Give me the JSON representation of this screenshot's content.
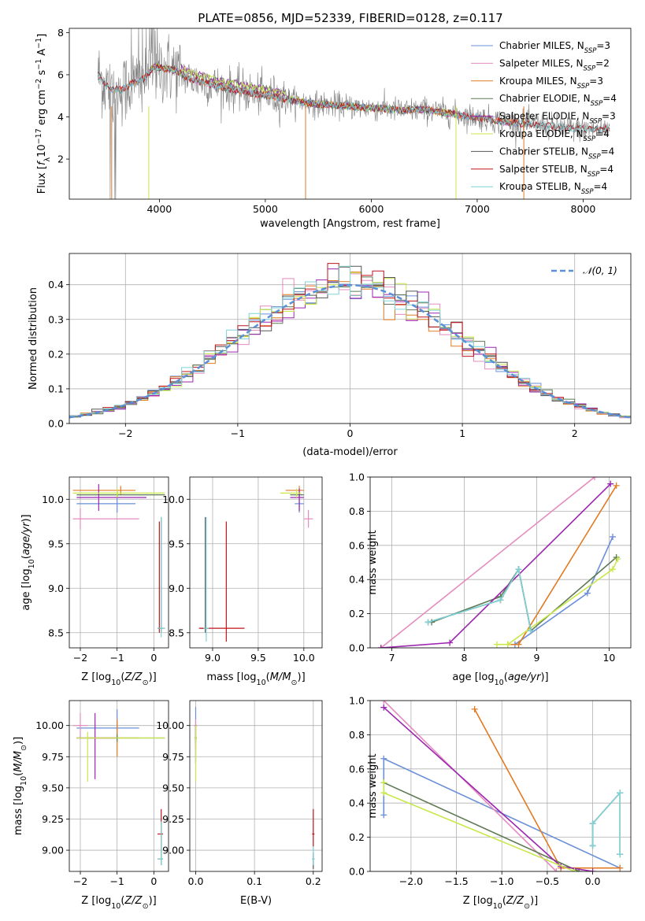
{
  "figure_title": "PLATE=0856, MJD=52339, FIBERID=0128, z=0.117",
  "colors": {
    "Chabrier MILES": "#6a8fd8",
    "Salpeter MILES": "#e58bbf",
    "Kroupa MILES": "#e07b22",
    "Chabrier ELODIE": "#5f7a55",
    "Salpeter ELODIE": "#9b26af",
    "Kroupa ELODIE": "#c8e84a",
    "Chabrier STELIB": "#555555",
    "Salpeter STELIB": "#c0151c",
    "Kroupa STELIB": "#7fd3d6",
    "data": "#808080"
  },
  "chart_data": [
    {
      "id": "spectrum",
      "type": "line",
      "title": "PLATE=0856, MJD=52339, FIBERID=0128, z=0.117",
      "xlabel": "wavelength [Angstrom, rest frame]",
      "ylabel": "Flux [fλ10^-17 erg cm^-2 s^-1 A^-1]",
      "xlim": [
        3150,
        8450
      ],
      "ylim": [
        0.1,
        8.2
      ],
      "xticks": [
        4000,
        5000,
        6000,
        7000,
        8000
      ],
      "yticks": [
        2,
        4,
        6,
        8
      ],
      "model_continuum": {
        "x": [
          3420,
          3480,
          3550,
          3650,
          3750,
          3850,
          3950,
          4050,
          4150,
          4300,
          4500,
          4700,
          4900,
          5100,
          5300,
          5500,
          5700,
          5900,
          6100,
          6300,
          6500,
          6700,
          6900,
          7100,
          7300,
          7500,
          7700,
          7900,
          8100,
          8250
        ],
        "y": [
          6.0,
          5.6,
          5.3,
          5.3,
          5.6,
          5.8,
          6.4,
          6.3,
          6.2,
          5.8,
          5.5,
          5.3,
          5.1,
          4.95,
          4.75,
          4.6,
          4.55,
          4.45,
          4.4,
          4.3,
          4.35,
          4.2,
          4.05,
          3.9,
          3.75,
          3.65,
          3.55,
          3.45,
          3.4,
          3.45
        ]
      },
      "legend": [
        {
          "label": "Chabrier MILES, N",
          "sub": "SSP",
          "tail": "=3",
          "color_key": "Chabrier MILES"
        },
        {
          "label": "Salpeter MILES, N",
          "sub": "SSP",
          "tail": "=2",
          "color_key": "Salpeter MILES"
        },
        {
          "label": "Kroupa MILES, N",
          "sub": "SSP",
          "tail": "=3",
          "color_key": "Kroupa MILES"
        },
        {
          "label": "Chabrier ELODIE, N",
          "sub": "SSP",
          "tail": "=4",
          "color_key": "Chabrier ELODIE"
        },
        {
          "label": "Salpeter ELODIE, N",
          "sub": "SSP",
          "tail": "=3",
          "color_key": "Salpeter ELODIE"
        },
        {
          "label": "Kroupa ELODIE, N",
          "sub": "SSP",
          "tail": "=4",
          "color_key": "Kroupa ELODIE"
        },
        {
          "label": "Chabrier STELIB, N",
          "sub": "SSP",
          "tail": "=4",
          "color_key": "Chabrier STELIB"
        },
        {
          "label": "Salpeter STELIB, N",
          "sub": "SSP",
          "tail": "=4",
          "color_key": "Salpeter STELIB"
        },
        {
          "label": "Kroupa STELIB, N",
          "sub": "SSP",
          "tail": "=4",
          "color_key": "Kroupa STELIB"
        }
      ]
    },
    {
      "id": "residuals",
      "type": "line",
      "xlabel": "(data-model)/error",
      "ylabel": "Normed distribution",
      "xlim": [
        -2.5,
        2.5
      ],
      "ylim": [
        0,
        0.49
      ],
      "xticks": [
        -2,
        -1,
        0,
        1,
        2
      ],
      "yticks": [
        0.0,
        0.1,
        0.2,
        0.3,
        0.4
      ],
      "bin_width": 0.1,
      "legend": "𝒩(0, 1)",
      "normal_curve": {
        "mu": 0,
        "sigma": 1,
        "color": "#5b8fd6"
      }
    },
    {
      "id": "age_vs_Z",
      "type": "scatter",
      "xlabel": "Z [log10(Z/Z☉)]",
      "ylabel": "age  [log10(age/yr)]",
      "xlim": [
        -2.3,
        0.4
      ],
      "ylim": [
        8.33,
        10.25
      ],
      "xticks": [
        -2,
        -1,
        0
      ],
      "yticks": [
        8.5,
        9.0,
        9.5,
        10.0
      ],
      "points": [
        {
          "key": "Chabrier MILES",
          "x": -1.0,
          "y": 9.95,
          "xerr": [
            1.1,
            0.5
          ],
          "yerr": [
            0.1,
            0.15
          ]
        },
        {
          "key": "Salpeter MILES",
          "x": -2.0,
          "y": 9.78,
          "xerr": [
            0.2,
            1.6
          ],
          "yerr": [
            0.12,
            0.12
          ]
        },
        {
          "key": "Kroupa MILES",
          "x": -0.9,
          "y": 10.1,
          "xerr": [
            1.3,
            0.4
          ],
          "yerr": [
            0.05,
            0.05
          ]
        },
        {
          "key": "Chabrier ELODIE",
          "x": -1.0,
          "y": 10.05,
          "xerr": [
            1.1,
            1.3
          ],
          "yerr": [
            0.03,
            0.03
          ]
        },
        {
          "key": "Salpeter ELODIE",
          "x": -1.5,
          "y": 10.02,
          "xerr": [
            0.6,
            1.3
          ],
          "yerr": [
            0.15,
            0.15
          ]
        },
        {
          "key": "Kroupa ELODIE",
          "x": -1.0,
          "y": 10.07,
          "xerr": [
            1.2,
            1.3
          ],
          "yerr": [
            0.05,
            0.05
          ]
        },
        {
          "key": "Chabrier STELIB",
          "x": 0.2,
          "y": 8.55,
          "xerr": [
            0.1,
            0.1
          ],
          "yerr": [
            0.05,
            1.25
          ]
        },
        {
          "key": "Salpeter STELIB",
          "x": 0.15,
          "y": 8.55,
          "xerr": [
            0.05,
            0.05
          ],
          "yerr": [
            0.05,
            1.2
          ]
        },
        {
          "key": "Kroupa STELIB",
          "x": 0.2,
          "y": 8.55,
          "xerr": [
            0.1,
            0.1
          ],
          "yerr": [
            0.1,
            1.25
          ]
        }
      ]
    },
    {
      "id": "age_vs_mass",
      "type": "scatter",
      "xlabel": "mass [log10(M/M☉)]",
      "ylabel": "",
      "xlim": [
        8.75,
        10.2
      ],
      "ylim": [
        8.33,
        10.25
      ],
      "xticks": [
        9.0,
        9.5,
        10.0
      ],
      "yticks": [
        8.5,
        9.0,
        9.5,
        10.0
      ],
      "points": [
        {
          "key": "Chabrier MILES",
          "x": 9.95,
          "y": 9.95,
          "xerr": [
            0.05,
            0.05
          ],
          "yerr": [
            0.1,
            0.15
          ]
        },
        {
          "key": "Salpeter MILES",
          "x": 10.05,
          "y": 9.78,
          "xerr": [
            0.05,
            0.05
          ],
          "yerr": [
            0.1,
            0.1
          ]
        },
        {
          "key": "Kroupa MILES",
          "x": 9.95,
          "y": 10.1,
          "xerr": [
            0.15,
            0.05
          ],
          "yerr": [
            0.05,
            0.05
          ]
        },
        {
          "key": "Chabrier ELODIE",
          "x": 9.95,
          "y": 10.05,
          "xerr": [
            0.1,
            0.05
          ],
          "yerr": [
            0.03,
            0.03
          ]
        },
        {
          "key": "Salpeter ELODIE",
          "x": 9.95,
          "y": 10.02,
          "xerr": [
            0.1,
            0.05
          ],
          "yerr": [
            0.15,
            0.1
          ]
        },
        {
          "key": "Kroupa ELODIE",
          "x": 9.92,
          "y": 10.07,
          "xerr": [
            0.18,
            0.05
          ],
          "yerr": [
            0.05,
            0.05
          ]
        },
        {
          "key": "Chabrier STELIB",
          "x": 8.92,
          "y": 8.55,
          "xerr": [
            0.05,
            0.05
          ],
          "yerr": [
            0.05,
            1.25
          ]
        },
        {
          "key": "Salpeter STELIB",
          "x": 9.15,
          "y": 8.55,
          "xerr": [
            0.3,
            0.2
          ],
          "yerr": [
            0.15,
            1.2
          ]
        },
        {
          "key": "Kroupa STELIB",
          "x": 8.93,
          "y": 8.55,
          "xerr": [
            0.03,
            0.03
          ],
          "yerr": [
            0.15,
            1.25
          ]
        }
      ]
    },
    {
      "id": "mass_weight_vs_age",
      "type": "line",
      "xlabel": "age  [log10(age/yr)]",
      "ylabel": "mass weight",
      "xlim": [
        6.7,
        10.3
      ],
      "ylim": [
        0,
        1.0
      ],
      "xticks": [
        7,
        8,
        9,
        10
      ],
      "yticks": [
        0.0,
        0.2,
        0.4,
        0.6,
        0.8,
        1.0
      ],
      "series": [
        {
          "key": "Chabrier MILES",
          "x": [
            8.7,
            9.7,
            10.05
          ],
          "y": [
            0.02,
            0.32,
            0.65
          ]
        },
        {
          "key": "Salpeter MILES",
          "x": [
            6.85,
            9.8
          ],
          "y": [
            0.0,
            1.0
          ]
        },
        {
          "key": "Kroupa MILES",
          "x": [
            8.6,
            8.75,
            10.1
          ],
          "y": [
            0.02,
            0.02,
            0.95
          ]
        },
        {
          "key": "Chabrier ELODIE",
          "x": [
            7.55,
            8.5,
            8.75,
            8.92,
            10.1
          ],
          "y": [
            0.15,
            0.3,
            0.46,
            0.1,
            0.53
          ]
        },
        {
          "key": "Salpeter ELODIE",
          "x": [
            6.85,
            7.8,
            10.02
          ],
          "y": [
            0.0,
            0.03,
            0.96
          ]
        },
        {
          "key": "Kroupa ELODIE",
          "x": [
            8.45,
            8.6,
            10.05,
            10.12
          ],
          "y": [
            0.02,
            0.02,
            0.46,
            0.52
          ]
        },
        {
          "key": "Chabrier STELIB",
          "x": [
            7.5,
            8.5,
            8.75,
            8.92
          ],
          "y": [
            0.15,
            0.28,
            0.46,
            0.1
          ]
        },
        {
          "key": "Kroupa STELIB",
          "x": [
            7.5,
            8.5,
            8.75,
            8.92
          ],
          "y": [
            0.15,
            0.28,
            0.46,
            0.1
          ]
        }
      ]
    },
    {
      "id": "mass_vs_Z",
      "type": "scatter",
      "xlabel": "Z [log10(Z/Z☉)]",
      "ylabel": "mass [log10(M/M☉)]",
      "xlim": [
        -2.3,
        0.4
      ],
      "ylim": [
        8.83,
        10.2
      ],
      "xticks": [
        -2,
        -1,
        0
      ],
      "yticks": [
        9.0,
        9.25,
        9.5,
        9.75,
        10.0
      ],
      "points": [
        {
          "key": "Chabrier MILES",
          "x": -1.0,
          "y": 9.98,
          "xerr": [
            1.1,
            0.6
          ],
          "yerr": [
            0.05,
            0.15
          ]
        },
        {
          "key": "Salpeter MILES",
          "x": -2.0,
          "y": 10.0,
          "xerr": [
            0.2,
            0.2
          ],
          "yerr": [
            0.1,
            0.1
          ]
        },
        {
          "key": "Kroupa MILES",
          "x": -1.0,
          "y": 9.9,
          "xerr": [
            0.8,
            0.6
          ],
          "yerr": [
            0.15,
            0.15
          ]
        },
        {
          "key": "Chabrier ELODIE",
          "x": -1.0,
          "y": 9.9,
          "xerr": [
            1.1,
            1.3
          ],
          "yerr": [
            0.03,
            0.03
          ]
        },
        {
          "key": "Salpeter ELODIE",
          "x": -1.6,
          "y": 9.9,
          "xerr": [
            0.5,
            0.6
          ],
          "yerr": [
            0.33,
            0.2
          ]
        },
        {
          "key": "Kroupa ELODIE",
          "x": -1.8,
          "y": 9.9,
          "xerr": [
            0.3,
            2.1
          ],
          "yerr": [
            0.35,
            0.05
          ]
        },
        {
          "key": "Chabrier STELIB",
          "x": 0.2,
          "y": 8.93,
          "xerr": [
            0.1,
            0.05
          ],
          "yerr": [
            0.05,
            0.05
          ]
        },
        {
          "key": "Salpeter STELIB",
          "x": 0.2,
          "y": 9.13,
          "xerr": [
            0.1,
            0.05
          ],
          "yerr": [
            0.15,
            0.2
          ]
        },
        {
          "key": "Kroupa STELIB",
          "x": 0.2,
          "y": 8.93,
          "xerr": [
            0.1,
            0.05
          ],
          "yerr": [
            0.05,
            0.3
          ]
        }
      ]
    },
    {
      "id": "mass_vs_ebv",
      "type": "scatter",
      "xlabel": "E(B-V)",
      "ylabel": "",
      "xlim": [
        -0.01,
        0.215
      ],
      "ylim": [
        8.83,
        10.2
      ],
      "xticks": [
        0.0,
        0.1,
        0.2
      ],
      "yticks": [
        9.0,
        9.25,
        9.5,
        9.75,
        10.0
      ],
      "points": [
        {
          "key": "Chabrier MILES",
          "x": 0.0,
          "y": 10.0,
          "xerr": [
            0.002,
            0.002
          ],
          "yerr": [
            0.05,
            0.15
          ]
        },
        {
          "key": "Salpeter MILES",
          "x": 0.0,
          "y": 10.0,
          "xerr": [
            0.002,
            0.002
          ],
          "yerr": [
            0.05,
            0.05
          ]
        },
        {
          "key": "Kroupa MILES",
          "x": 0.0,
          "y": 9.9,
          "xerr": [
            0.002,
            0.002
          ],
          "yerr": [
            0.1,
            0.1
          ]
        },
        {
          "key": "Chabrier ELODIE",
          "x": 0.0,
          "y": 9.9,
          "xerr": [
            0.002,
            0.002
          ],
          "yerr": [
            0.05,
            0.05
          ]
        },
        {
          "key": "Salpeter ELODIE",
          "x": 0.0,
          "y": 9.9,
          "xerr": [
            0.002,
            0.002
          ],
          "yerr": [
            0.2,
            0.1
          ]
        },
        {
          "key": "Kroupa ELODIE",
          "x": 0.0,
          "y": 9.9,
          "xerr": [
            0.002,
            0.002
          ],
          "yerr": [
            0.35,
            0.1
          ]
        },
        {
          "key": "Chabrier STELIB",
          "x": 0.2,
          "y": 8.93,
          "xerr": [
            0.002,
            0.002
          ],
          "yerr": [
            0.08,
            0.05
          ]
        },
        {
          "key": "Salpeter STELIB",
          "x": 0.2,
          "y": 9.13,
          "xerr": [
            0.002,
            0.002
          ],
          "yerr": [
            0.1,
            0.2
          ]
        },
        {
          "key": "Kroupa STELIB",
          "x": 0.2,
          "y": 8.93,
          "xerr": [
            0.002,
            0.002
          ],
          "yerr": [
            0.05,
            0.1
          ]
        }
      ]
    },
    {
      "id": "mass_weight_vs_Z",
      "type": "line",
      "xlabel": "Z [log10(Z/Z☉)]",
      "ylabel": "mass weight",
      "xlim": [
        -2.45,
        0.42
      ],
      "ylim": [
        0,
        1.0
      ],
      "xticks": [
        -2.0,
        -1.5,
        -1.0,
        -0.5,
        0.0
      ],
      "yticks": [
        0.0,
        0.2,
        0.4,
        0.6,
        0.8,
        1.0
      ],
      "series": [
        {
          "key": "Chabrier MILES",
          "x": [
            -2.3,
            -2.3,
            0.3
          ],
          "y": [
            0.33,
            0.66,
            0.02
          ]
        },
        {
          "key": "Salpeter MILES",
          "x": [
            -2.3,
            -0.4
          ],
          "y": [
            1.0,
            0.0
          ]
        },
        {
          "key": "Kroupa MILES",
          "x": [
            -1.3,
            -0.35,
            0.3
          ],
          "y": [
            0.95,
            0.02,
            0.02
          ]
        },
        {
          "key": "Chabrier ELODIE",
          "x": [
            -2.3,
            -0.15
          ],
          "y": [
            0.52,
            0.0
          ]
        },
        {
          "key": "Salpeter ELODIE",
          "x": [
            -2.3,
            -0.35,
            0.0
          ],
          "y": [
            0.96,
            0.03,
            0.0
          ]
        },
        {
          "key": "Kroupa ELODIE",
          "x": [
            -2.3,
            -2.3,
            -0.2
          ],
          "y": [
            0.52,
            0.46,
            0.0
          ]
        },
        {
          "key": "Chabrier STELIB",
          "x": [
            0.0,
            0.0,
            0.3,
            0.3
          ],
          "y": [
            0.15,
            0.28,
            0.46,
            0.1
          ]
        },
        {
          "key": "Kroupa STELIB",
          "x": [
            0.0,
            0.0,
            0.3,
            0.3
          ],
          "y": [
            0.15,
            0.28,
            0.46,
            0.1
          ]
        }
      ]
    }
  ]
}
